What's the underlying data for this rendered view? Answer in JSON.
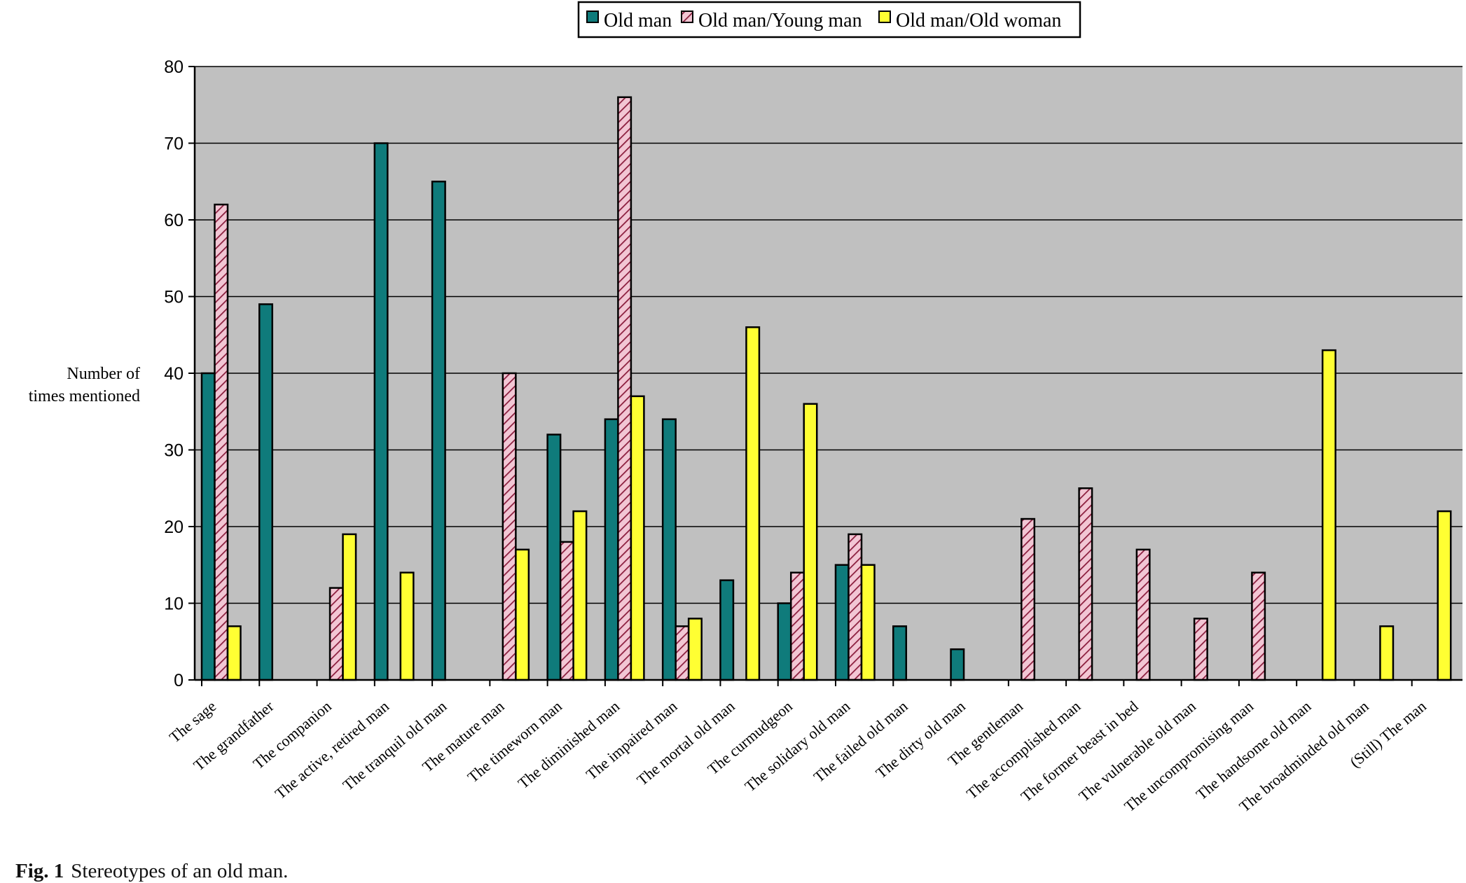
{
  "caption": {
    "label": "Fig. 1",
    "text": "Stereotypes of an old man."
  },
  "colors": {
    "plot_background": "#c0c0c0",
    "series_old_man": "#0f7b7b",
    "series_old_young": "#f2c6d4",
    "series_old_young_hatch": "#8a1c3c",
    "series_old_woman": "#ffff33"
  },
  "chart_data": {
    "type": "bar",
    "title": "",
    "xlabel": "",
    "ylabel": "Number of times mentioned",
    "ylabel_lines": [
      "Number of",
      "times mentioned"
    ],
    "ylim": [
      0,
      80
    ],
    "yticks": [
      0,
      10,
      20,
      30,
      40,
      50,
      60,
      70,
      80
    ],
    "grid": true,
    "legend_position": "top-center",
    "categories": [
      "The sage",
      "The grandfather",
      "The companion",
      "The active, retired man",
      "The tranquil old man",
      "The mature man",
      "The timeworn man",
      "The diminished man",
      "The impaired man",
      "The mortal old man",
      "The curmudgeon",
      "The solidary old man",
      "The failed old man",
      "The dirty old man",
      "The gentleman",
      "The accomplished man",
      "The former beast in bed",
      "The vulnerable old man",
      "The uncompromising man",
      "The handsome old man",
      "The broadminded old man",
      "(Still) The man"
    ],
    "series": [
      {
        "name": "Old man",
        "values": [
          40,
          49,
          0,
          70,
          65,
          0,
          32,
          34,
          34,
          13,
          10,
          15,
          7,
          4,
          0,
          0,
          0,
          0,
          0,
          0,
          0,
          0
        ]
      },
      {
        "name": "Old man/Young man",
        "values": [
          62,
          0,
          12,
          0,
          0,
          40,
          18,
          76,
          7,
          0,
          14,
          19,
          0,
          0,
          21,
          25,
          17,
          8,
          14,
          0,
          0,
          0
        ]
      },
      {
        "name": "Old man/Old woman",
        "values": [
          7,
          0,
          19,
          14,
          0,
          17,
          22,
          37,
          8,
          46,
          36,
          15,
          0,
          0,
          0,
          0,
          0,
          0,
          0,
          43,
          7,
          22
        ]
      }
    ]
  }
}
